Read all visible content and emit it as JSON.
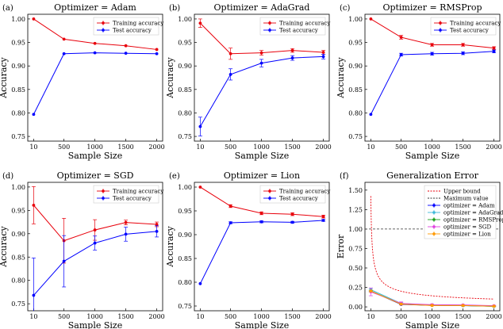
{
  "chart_data": [
    {
      "type": "line",
      "panel_label": "(a)",
      "title": "Optimizer = Adam",
      "xlabel": "Sample Size",
      "ylabel": "Accuracy",
      "x": [
        10,
        500,
        1000,
        1500,
        2000
      ],
      "xticks": [
        "10",
        "500",
        "1000",
        "1500",
        "2000"
      ],
      "ylim": [
        0.74,
        1.01
      ],
      "yticks": [
        "0.75",
        "0.80",
        "0.85",
        "0.90",
        "0.95",
        "1.00"
      ],
      "ytick_values": [
        0.75,
        0.8,
        0.85,
        0.9,
        0.95,
        1.0
      ],
      "legend": "top-right",
      "series": [
        {
          "name": "Training accuracy",
          "color": "#e8000b",
          "values": [
            1.0,
            0.957,
            0.948,
            0.943,
            0.935
          ],
          "errors": [
            0,
            0,
            0,
            0,
            0
          ]
        },
        {
          "name": "Test accuracy",
          "color": "#0000ff",
          "values": [
            0.797,
            0.926,
            0.928,
            0.927,
            0.926
          ],
          "errors": [
            0,
            0,
            0,
            0,
            0
          ]
        }
      ]
    },
    {
      "type": "line",
      "panel_label": "(b)",
      "title": "Optimizer = AdaGrad",
      "xlabel": "Sample Size",
      "ylabel": "Accuracy",
      "x": [
        10,
        500,
        1000,
        1500,
        2000
      ],
      "xticks": [
        "10",
        "500",
        "1000",
        "1500",
        "2000"
      ],
      "ylim": [
        0.74,
        1.01
      ],
      "yticks": [
        "0.75",
        "0.80",
        "0.85",
        "0.90",
        "0.95",
        "1.00"
      ],
      "ytick_values": [
        0.75,
        0.8,
        0.85,
        0.9,
        0.95,
        1.0
      ],
      "legend": "top-right",
      "series": [
        {
          "name": "Training accuracy",
          "color": "#e8000b",
          "values": [
            0.991,
            0.926,
            0.928,
            0.933,
            0.929
          ],
          "errors": [
            0.009,
            0.012,
            0.005,
            0.004,
            0.004
          ]
        },
        {
          "name": "Test accuracy",
          "color": "#0000ff",
          "values": [
            0.771,
            0.882,
            0.906,
            0.917,
            0.92
          ],
          "errors": [
            0.02,
            0.012,
            0.008,
            0.005,
            0.005
          ]
        }
      ]
    },
    {
      "type": "line",
      "panel_label": "(c)",
      "title": "Optimizer = RMSProp",
      "xlabel": "Sample Size",
      "ylabel": "Accuracy",
      "x": [
        10,
        500,
        1000,
        1500,
        2000
      ],
      "xticks": [
        "10",
        "500",
        "1000",
        "1500",
        "2000"
      ],
      "ylim": [
        0.74,
        1.01
      ],
      "yticks": [
        "0.75",
        "0.80",
        "0.85",
        "0.90",
        "0.95",
        "1.00"
      ],
      "ytick_values": [
        0.75,
        0.8,
        0.85,
        0.9,
        0.95,
        1.0
      ],
      "legend": "top-right",
      "series": [
        {
          "name": "Training accuracy",
          "color": "#e8000b",
          "values": [
            1.0,
            0.961,
            0.945,
            0.945,
            0.938
          ],
          "errors": [
            0,
            0.004,
            0.003,
            0.003,
            0.003
          ]
        },
        {
          "name": "Test accuracy",
          "color": "#0000ff",
          "values": [
            0.797,
            0.924,
            0.926,
            0.927,
            0.931
          ],
          "errors": [
            0,
            0.003,
            0.003,
            0.003,
            0.003
          ]
        }
      ]
    },
    {
      "type": "line",
      "panel_label": "(d)",
      "title": "Optimizer = SGD",
      "xlabel": "Sample Size",
      "ylabel": "Accuracy",
      "x": [
        10,
        500,
        1000,
        1500,
        2000
      ],
      "xticks": [
        "10",
        "500",
        "1000",
        "1500",
        "2000"
      ],
      "ylim": [
        0.735,
        1.01
      ],
      "yticks": [
        "0.75",
        "0.80",
        "0.85",
        "0.90",
        "0.95",
        "1.00"
      ],
      "ytick_values": [
        0.75,
        0.8,
        0.85,
        0.9,
        0.95,
        1.0
      ],
      "legend": "top-right",
      "series": [
        {
          "name": "Training accuracy",
          "color": "#e8000b",
          "values": [
            0.961,
            0.885,
            0.908,
            0.924,
            0.92
          ],
          "errors": [
            0.04,
            0.048,
            0.022,
            0.005,
            0.005
          ]
        },
        {
          "name": "Test accuracy",
          "color": "#0000ff",
          "values": [
            0.768,
            0.841,
            0.88,
            0.899,
            0.905
          ],
          "errors": [
            0.08,
            0.055,
            0.015,
            0.015,
            0.012
          ]
        }
      ]
    },
    {
      "type": "line",
      "panel_label": "(e)",
      "title": "Optimizer = Lion",
      "xlabel": "Sample Size",
      "ylabel": "Accuracy",
      "x": [
        10,
        500,
        1000,
        1500,
        2000
      ],
      "xticks": [
        "10",
        "500",
        "1000",
        "1500",
        "2000"
      ],
      "ylim": [
        0.74,
        1.01
      ],
      "yticks": [
        "0.75",
        "0.80",
        "0.85",
        "0.90",
        "0.95",
        "1.00"
      ],
      "ytick_values": [
        0.75,
        0.8,
        0.85,
        0.9,
        0.95,
        1.0
      ],
      "legend": "top-right",
      "series": [
        {
          "name": "Training accuracy",
          "color": "#e8000b",
          "values": [
            1.0,
            0.96,
            0.945,
            0.943,
            0.938
          ],
          "errors": [
            0,
            0.003,
            0.003,
            0.003,
            0.003
          ]
        },
        {
          "name": "Test accuracy",
          "color": "#0000ff",
          "values": [
            0.797,
            0.925,
            0.927,
            0.926,
            0.93
          ],
          "errors": [
            0,
            0.002,
            0.002,
            0.002,
            0.002
          ]
        }
      ]
    },
    {
      "type": "line",
      "panel_label": "(f)",
      "title": "Generalization Error",
      "xlabel": "Sample Size",
      "ylabel": "Error",
      "x": [
        10,
        500,
        1000,
        1500,
        2000
      ],
      "xticks": [
        "10",
        "500",
        "1000",
        "1500",
        "2000"
      ],
      "ylim": [
        -0.05,
        1.6
      ],
      "yticks": [
        "0.00",
        "0.25",
        "0.50",
        "0.75",
        "1.00",
        "1.25",
        "1.50"
      ],
      "ytick_values": [
        0.0,
        0.25,
        0.5,
        0.75,
        1.0,
        1.25,
        1.5
      ],
      "legend": "top-right",
      "upper_bound": {
        "name": "Upper bound",
        "color": "#e8000b",
        "c": 4.5
      },
      "max_value": {
        "name": "Maximum value",
        "color": "#555555",
        "value": 1.0
      },
      "series": [
        {
          "name": "optimizer = Adam",
          "color": "#0000ff",
          "values": [
            0.203,
            0.031,
            0.02,
            0.016,
            0.009
          ],
          "errors": [
            0.01,
            0.004,
            0.004,
            0.004,
            0.004
          ]
        },
        {
          "name": "optimizer = AdaGrad",
          "color": "#3fb8d8",
          "values": [
            0.22,
            0.044,
            0.022,
            0.016,
            0.009
          ],
          "errors": [
            0.02,
            0.012,
            0.006,
            0.006,
            0.006
          ]
        },
        {
          "name": "optimizer = RMSProp",
          "color": "#18a018",
          "values": [
            0.203,
            0.037,
            0.019,
            0.018,
            0.007
          ],
          "errors": [
            0.01,
            0.005,
            0.004,
            0.004,
            0.004
          ]
        },
        {
          "name": "optimizer = SGD",
          "color": "#e040e0",
          "values": [
            0.193,
            0.044,
            0.028,
            0.025,
            0.015
          ],
          "errors": [
            0.05,
            0.02,
            0.01,
            0.006,
            0.006
          ]
        },
        {
          "name": "optimizer = Lion",
          "color": "#ff9900",
          "values": [
            0.203,
            0.035,
            0.018,
            0.017,
            0.008
          ],
          "errors": [
            0.01,
            0.004,
            0.004,
            0.004,
            0.004
          ]
        }
      ]
    }
  ]
}
